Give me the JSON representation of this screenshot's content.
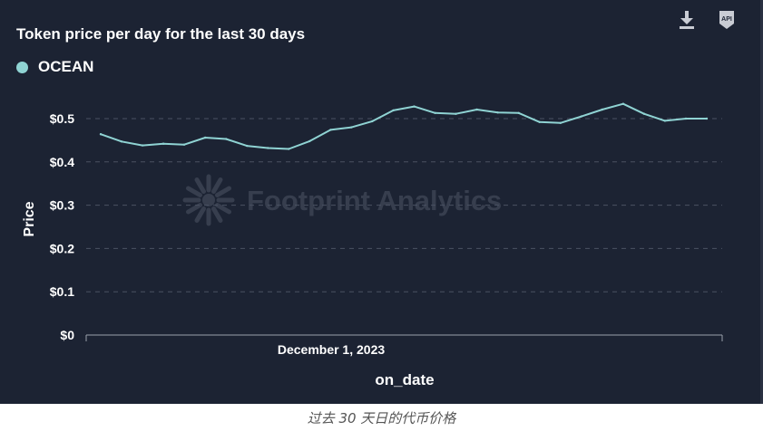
{
  "chart_title": "Token price per day for the last 30 days",
  "legend_label": "OCEAN",
  "watermark": "Footprint Analytics",
  "api_label": "API",
  "caption": "过去 30 天日的代币价格",
  "colors": {
    "background": "#1c2333",
    "line": "#8fd3d3",
    "grid": "#4a5263",
    "text": "#ffffff",
    "watermark": "#3a4252"
  },
  "icons": [
    "download-icon",
    "api-icon"
  ],
  "chart_data": {
    "type": "line",
    "title": "Token price per day for the last 30 days",
    "xlabel": "on_date",
    "ylabel": "Price",
    "ylim": [
      0,
      0.5
    ],
    "yticks": [
      "$0",
      "$0.1",
      "$0.2",
      "$0.3",
      "$0.4",
      "$0.5"
    ],
    "x_tick_labels": [
      "December 1, 2023"
    ],
    "grid": true,
    "legend_position": "top-left",
    "series": [
      {
        "name": "OCEAN",
        "values": [
          0.464,
          0.447,
          0.438,
          0.442,
          0.44,
          0.456,
          0.453,
          0.437,
          0.432,
          0.43,
          0.448,
          0.474,
          0.48,
          0.494,
          0.519,
          0.528,
          0.513,
          0.511,
          0.521,
          0.514,
          0.513,
          0.492,
          0.49,
          0.505,
          0.521,
          0.534,
          0.511,
          0.495,
          0.5,
          0.5
        ]
      }
    ]
  }
}
